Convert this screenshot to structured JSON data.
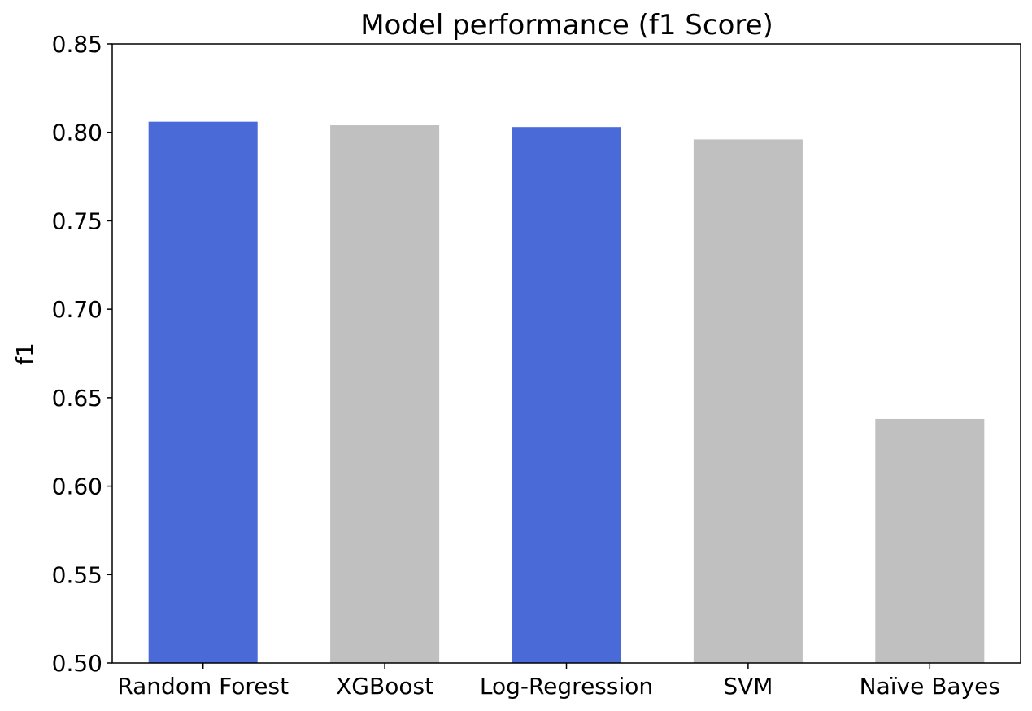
{
  "chart_data": {
    "type": "bar",
    "title": "Model performance (f1 Score)",
    "xlabel": "",
    "ylabel": "f1",
    "categories": [
      "Random Forest",
      "XGBoost",
      "Log-Regression",
      "SVM",
      "Naïve Bayes"
    ],
    "values": [
      0.806,
      0.804,
      0.803,
      0.796,
      0.638
    ],
    "colors": [
      "#4a6ad8",
      "#c0c0c0",
      "#4a6ad8",
      "#c0c0c0",
      "#c0c0c0"
    ],
    "ylim": [
      0.5,
      0.85
    ],
    "yticks": [
      "0.50",
      "0.55",
      "0.60",
      "0.65",
      "0.70",
      "0.75",
      "0.80",
      "0.85"
    ],
    "grid": false,
    "legend": "none"
  }
}
